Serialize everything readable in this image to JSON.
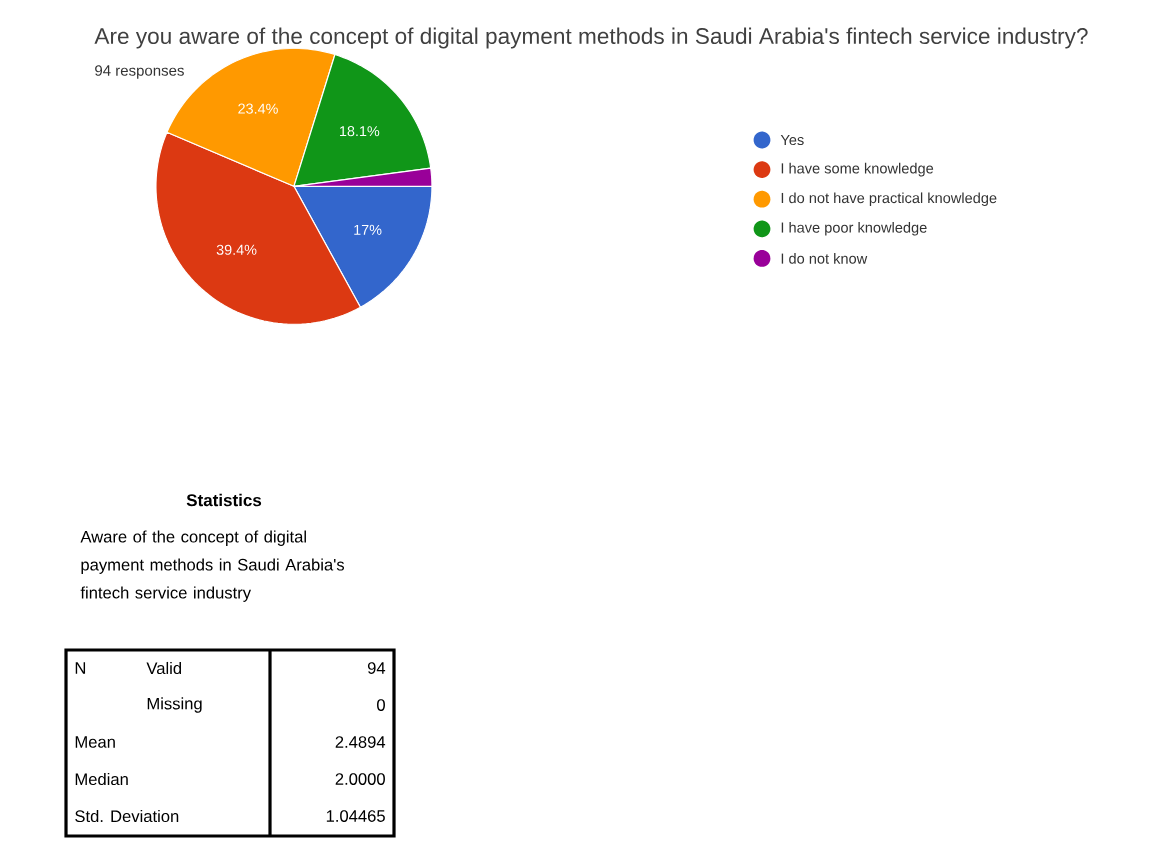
{
  "chart_data": {
    "type": "pie",
    "title": "Are you aware of the concept of digital payment methods in Saudi Arabia's fintech service industry?",
    "subtitle": "94 responses",
    "categories": [
      "Yes",
      "I have some knowledge",
      "I do not have practical knowledge",
      "I have poor knowledge",
      "I do not know"
    ],
    "values": [
      17,
      39.4,
      23.4,
      18.1,
      2.1
    ],
    "colors": [
      "#3366cc",
      "#dc3912",
      "#ff9900",
      "#109618",
      "#990099"
    ],
    "value_labels": [
      "17%",
      "39.4%",
      "23.4%",
      "18.1%",
      null
    ],
    "legend": "right",
    "annotations": [
      "Statistics",
      "Aware of the concept of digital payment methods in Saudi Arabia's fintech service industry",
      "N",
      "Valid",
      "94",
      "Missing",
      "0",
      "Mean",
      "2.4894",
      "Median",
      "2.0000",
      "Std. Deviation",
      "1.04465"
    ]
  }
}
